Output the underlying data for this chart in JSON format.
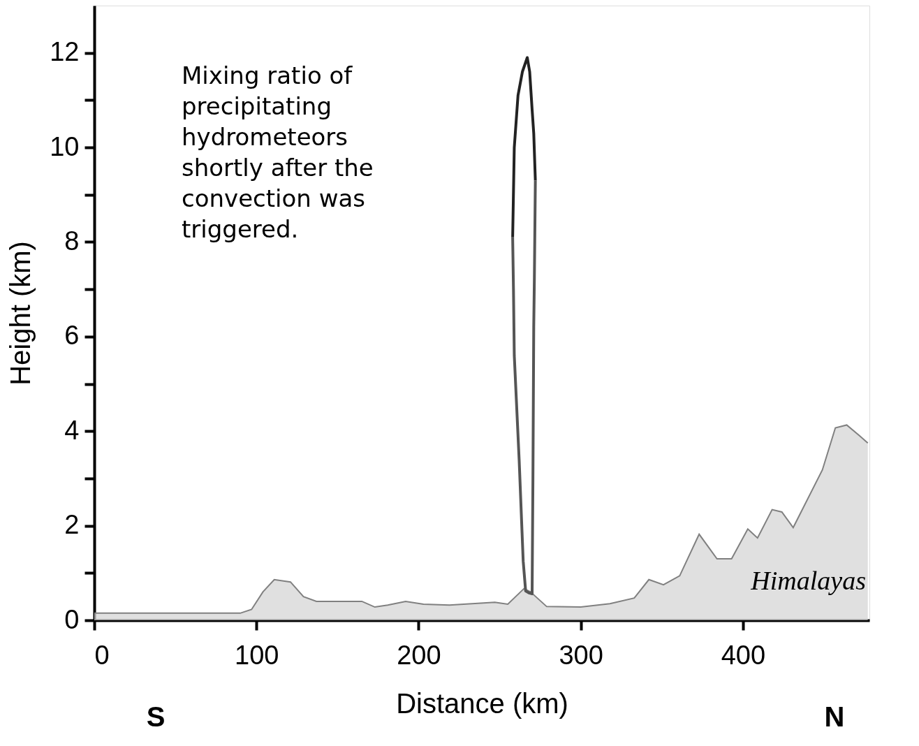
{
  "chart_data": {
    "type": "area",
    "xlabel": "Distance (km)",
    "ylabel": "Height (km)",
    "xlim": [
      0,
      478
    ],
    "ylim": [
      0,
      13
    ],
    "xticks": [
      0,
      100,
      200,
      300,
      400
    ],
    "yticks": [
      0,
      {
        "value": 1,
        "label": null
      },
      2,
      {
        "value": 3,
        "label": null
      },
      4,
      {
        "value": 5,
        "label": null
      },
      6,
      {
        "value": 7,
        "label": null
      },
      8,
      {
        "value": 9,
        "label": null
      },
      10,
      {
        "value": 11,
        "label": null
      },
      12
    ],
    "grid": false,
    "series": [
      {
        "color": "#d3d3d3",
        "x": [
          0,
          90,
          97,
          104,
          111,
          121,
          129,
          137,
          165,
          173,
          181,
          192,
          203,
          219,
          247,
          255,
          265,
          269,
          279,
          300,
          318,
          333,
          342,
          351,
          361,
          373,
          384,
          393,
          403,
          409,
          418,
          424,
          431,
          449,
          457,
          464,
          472,
          477
        ],
        "values": [
          0.15,
          0.15,
          0.23,
          0.6,
          0.86,
          0.81,
          0.5,
          0.4,
          0.4,
          0.28,
          0.32,
          0.4,
          0.34,
          0.32,
          0.38,
          0.34,
          0.67,
          0.6,
          0.29,
          0.28,
          0.35,
          0.47,
          0.86,
          0.75,
          0.94,
          1.82,
          1.3,
          1.3,
          1.93,
          1.74,
          2.34,
          2.29,
          1.96,
          3.18,
          4.07,
          4.13,
          3.9,
          3.75
        ]
      },
      {
        "type": "line",
        "color": "#222222",
        "x": [
          258,
          259,
          261.3,
          264,
          267,
          268.5,
          270,
          271,
          272
        ],
        "values": [
          8.1,
          10,
          11.1,
          11.6,
          11.9,
          11.6,
          10.8,
          10.3,
          9.3
        ]
      },
      {
        "type": "line",
        "color": "#555555",
        "x": [
          258,
          258.5,
          259,
          262,
          264.5,
          266,
          268,
          270,
          270.5,
          271,
          271.4,
          272
        ],
        "values": [
          8.1,
          7,
          5.6,
          3.4,
          1.25,
          0.62,
          0.58,
          0.56,
          3,
          6.2,
          7.25,
          9.3
        ]
      }
    ],
    "annotations": [
      "Mixing ratio of precipitating hydrometeors shortly after the convection was triggered.",
      "Himalayas",
      "S",
      "N"
    ]
  }
}
